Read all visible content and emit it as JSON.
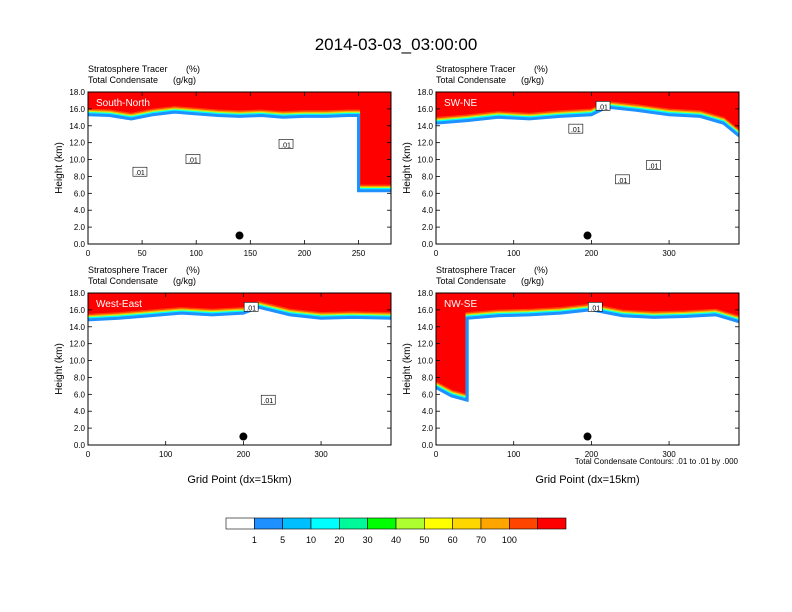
{
  "figure": {
    "title": "2014-03-03_03:00:00",
    "contour_note": "Total Condensate Contours: .01 to .01 by .000"
  },
  "colorbar": {
    "colors": [
      "#ffffff",
      "#1e90ff",
      "#00bfff",
      "#00ffff",
      "#00fa9a",
      "#00ff00",
      "#adff2f",
      "#ffff00",
      "#ffd700",
      "#ffa500",
      "#ff4500",
      "#ff0000"
    ],
    "labels": [
      "1",
      "5",
      "10",
      "20",
      "30",
      "40",
      "50",
      "60",
      "70",
      "100"
    ]
  },
  "chart_data": [
    {
      "type": "heatmap",
      "panel_label": "South-North",
      "header_left": [
        "Stratosphere Tracer",
        "Total Condensate"
      ],
      "header_units": [
        "(%)",
        "(g/kg)"
      ],
      "ylabel": "Height (km)",
      "xlabel": "",
      "xlim": [
        0,
        280
      ],
      "ylim": [
        0,
        18
      ],
      "xticks": [
        "0",
        "50",
        "100",
        "150",
        "200",
        "250"
      ],
      "xtick_values": [
        0,
        50,
        100,
        150,
        200,
        250
      ],
      "yticks": [
        "0.0",
        "2.0",
        "4.0",
        "6.0",
        "8.0",
        "10.0",
        "12.0",
        "14.0",
        "16.0",
        "18.0"
      ],
      "tropopause": [
        [
          0,
          15.5
        ],
        [
          20,
          15.4
        ],
        [
          40,
          15.0
        ],
        [
          60,
          15.5
        ],
        [
          80,
          15.8
        ],
        [
          100,
          15.6
        ],
        [
          120,
          15.4
        ],
        [
          140,
          15.3
        ],
        [
          160,
          15.4
        ],
        [
          180,
          15.2
        ],
        [
          200,
          15.3
        ],
        [
          220,
          15.3
        ],
        [
          240,
          15.4
        ],
        [
          250,
          15.4
        ],
        [
          250,
          6.5
        ],
        [
          280,
          6.5
        ]
      ],
      "marker": [
        140,
        1.0
      ],
      "contour_labels": [
        {
          "x": 48,
          "y": 8.5,
          "text": ".01"
        },
        {
          "x": 97,
          "y": 10.0,
          "text": ".01"
        },
        {
          "x": 183,
          "y": 11.8,
          "text": ".01"
        }
      ]
    },
    {
      "type": "heatmap",
      "panel_label": "SW-NE",
      "header_left": [
        "Stratosphere Tracer",
        "Total Condensate"
      ],
      "header_units": [
        "(%)",
        "(g/kg)"
      ],
      "ylabel": "Height (km)",
      "xlabel": "",
      "xlim": [
        0,
        390
      ],
      "ylim": [
        0,
        18
      ],
      "xticks": [
        "0",
        "100",
        "200",
        "300"
      ],
      "xtick_values": [
        0,
        100,
        200,
        300
      ],
      "yticks": [
        "0.0",
        "2.0",
        "4.0",
        "6.0",
        "8.0",
        "10.0",
        "12.0",
        "14.0",
        "16.0",
        "18.0"
      ],
      "tropopause": [
        [
          0,
          14.5
        ],
        [
          40,
          14.8
        ],
        [
          80,
          15.2
        ],
        [
          120,
          15.0
        ],
        [
          160,
          15.3
        ],
        [
          200,
          15.5
        ],
        [
          220,
          16.4
        ],
        [
          260,
          16.0
        ],
        [
          300,
          15.5
        ],
        [
          340,
          15.3
        ],
        [
          370,
          14.5
        ],
        [
          390,
          13.0
        ]
      ],
      "marker": [
        195,
        1.0
      ],
      "contour_labels": [
        {
          "x": 215,
          "y": 16.3,
          "text": ".01"
        },
        {
          "x": 180,
          "y": 13.6,
          "text": ".01"
        },
        {
          "x": 280,
          "y": 9.3,
          "text": ".01"
        },
        {
          "x": 240,
          "y": 7.6,
          "text": ".01"
        }
      ]
    },
    {
      "type": "heatmap",
      "panel_label": "West-East",
      "header_left": [
        "Stratosphere Tracer",
        "Total Condensate"
      ],
      "header_units": [
        "(%)",
        "(g/kg)"
      ],
      "ylabel": "Height (km)",
      "xlabel": "Grid Point (dx=15km)",
      "xlim": [
        0,
        390
      ],
      "ylim": [
        0,
        18
      ],
      "xticks": [
        "0",
        "100",
        "200",
        "300"
      ],
      "xtick_values": [
        0,
        100,
        200,
        300
      ],
      "yticks": [
        "0.0",
        "2.0",
        "4.0",
        "6.0",
        "8.0",
        "10.0",
        "12.0",
        "14.0",
        "16.0",
        "18.0"
      ],
      "tropopause": [
        [
          0,
          15.0
        ],
        [
          40,
          15.2
        ],
        [
          80,
          15.5
        ],
        [
          120,
          15.8
        ],
        [
          160,
          15.6
        ],
        [
          200,
          15.8
        ],
        [
          220,
          16.5
        ],
        [
          260,
          15.6
        ],
        [
          300,
          15.2
        ],
        [
          340,
          15.3
        ],
        [
          390,
          15.2
        ]
      ],
      "marker": [
        200,
        1.0
      ],
      "contour_labels": [
        {
          "x": 210,
          "y": 16.3,
          "text": ".01"
        },
        {
          "x": 232,
          "y": 5.3,
          "text": ".01"
        }
      ]
    },
    {
      "type": "heatmap",
      "panel_label": "NW-SE",
      "header_left": [
        "Stratosphere Tracer",
        "Total Condensate"
      ],
      "header_units": [
        "(%)",
        "(g/kg)"
      ],
      "ylabel": "Height (km)",
      "xlabel": "Grid Point (dx=15km)",
      "xlim": [
        0,
        390
      ],
      "ylim": [
        0,
        18
      ],
      "xticks": [
        "0",
        "100",
        "200",
        "300"
      ],
      "xtick_values": [
        0,
        100,
        200,
        300
      ],
      "yticks": [
        "0.0",
        "2.0",
        "4.0",
        "6.0",
        "8.0",
        "10.0",
        "12.0",
        "14.0",
        "16.0",
        "18.0"
      ],
      "tropopause": [
        [
          0,
          7.0
        ],
        [
          20,
          6.0
        ],
        [
          40,
          5.5
        ],
        [
          40,
          15.2
        ],
        [
          80,
          15.5
        ],
        [
          120,
          15.6
        ],
        [
          160,
          15.8
        ],
        [
          200,
          16.2
        ],
        [
          240,
          15.5
        ],
        [
          280,
          15.3
        ],
        [
          320,
          15.4
        ],
        [
          360,
          15.6
        ],
        [
          390,
          14.8
        ]
      ],
      "marker": [
        195,
        1.0
      ],
      "contour_labels": [
        {
          "x": 205,
          "y": 16.3,
          "text": ".01"
        }
      ]
    }
  ]
}
